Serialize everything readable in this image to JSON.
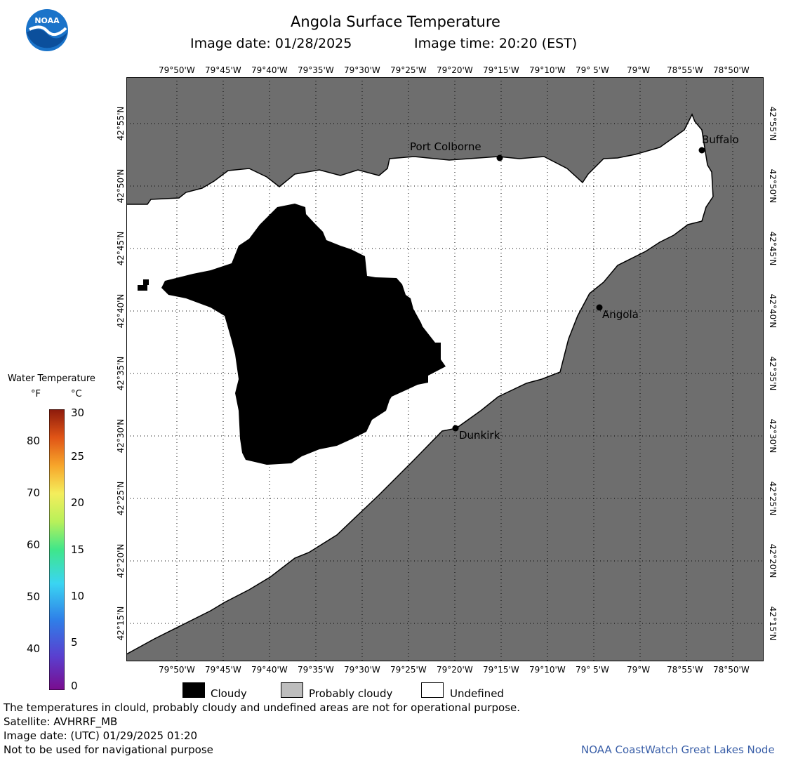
{
  "header": {
    "title": "Angola Surface Temperature",
    "image_date_label": "Image date: 01/28/2025",
    "image_time_label": "Image time: 20:20 (EST)",
    "logo_text": "NOAA"
  },
  "map": {
    "lon_labels": [
      "79°50'W",
      "79°45'W",
      "79°40'W",
      "79°35'W",
      "79°30'W",
      "79°25'W",
      "79°20'W",
      "79°15'W",
      "79°10'W",
      "79° 5'W",
      "79°W",
      "78°55'W",
      "78°50'W"
    ],
    "lat_labels": [
      "42°55'N",
      "42°50'N",
      "42°45'N",
      "42°40'N",
      "42°35'N",
      "42°30'N",
      "42°25'N",
      "42°20'N",
      "42°15'N"
    ],
    "land_color": "#6e6e6e",
    "cloud_color": "#000000",
    "undefined_color": "#ffffff",
    "cities": [
      {
        "name": "Port Colborne"
      },
      {
        "name": "Buffalo"
      },
      {
        "name": "Angola"
      },
      {
        "name": "Dunkirk"
      }
    ]
  },
  "colorbar": {
    "title": "Water Temperature",
    "unit_f": "°F",
    "unit_c": "°C",
    "f_ticks": [
      "80",
      "70",
      "60",
      "50",
      "40"
    ],
    "c_ticks": [
      "30",
      "25",
      "20",
      "15",
      "10",
      "5",
      "0"
    ]
  },
  "key": {
    "cloudy": "Cloudy",
    "probably_cloudy": "Probably cloudy",
    "undefined": "Undefined",
    "cloudy_color": "#000000",
    "probably_cloudy_color": "#bdbdbd",
    "undefined_color": "#ffffff"
  },
  "footer": {
    "disclaimer": "The temperatures in clould, probably cloudy and undefined areas are not for operational purpose.",
    "satellite": "Satellite: AVHRRF_MB",
    "utc_date": "Image date: (UTC) 01/29/2025  01:20",
    "nav_warning": "Not to be used for navigational purpose",
    "node": "NOAA CoastWatch Great Lakes Node"
  }
}
